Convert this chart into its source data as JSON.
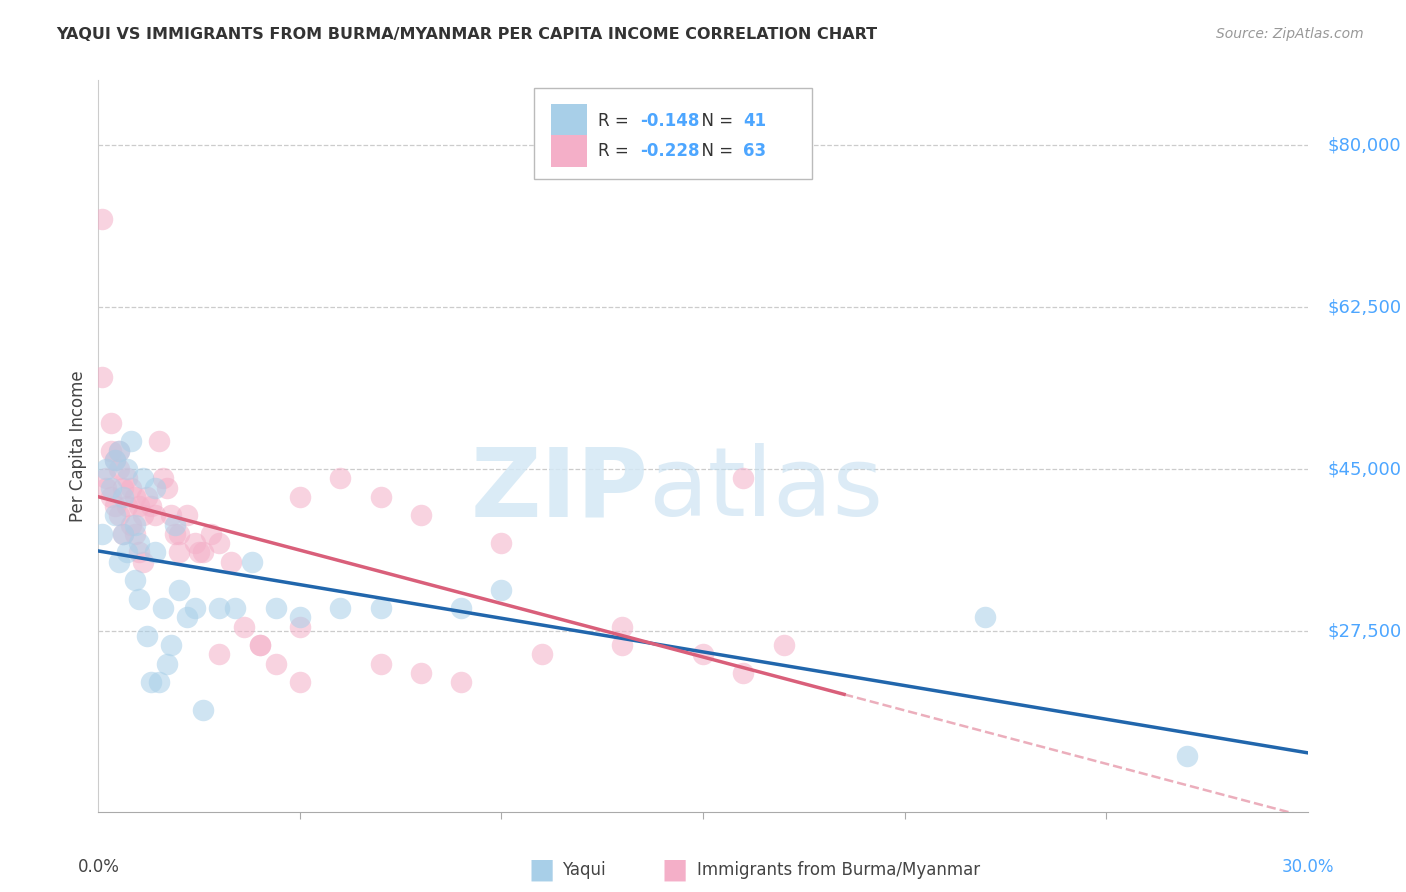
{
  "title": "YAQUI VS IMMIGRANTS FROM BURMA/MYANMAR PER CAPITA INCOME CORRELATION CHART",
  "source": "Source: ZipAtlas.com",
  "ylabel": "Per Capita Income",
  "xmin": 0.0,
  "xmax": 0.3,
  "ymin": 8000,
  "ymax": 87000,
  "blue_R": "-0.148",
  "blue_N": "41",
  "pink_R": "-0.228",
  "pink_N": "63",
  "blue_color": "#a8cfe8",
  "pink_color": "#f4afc8",
  "blue_line_color": "#2166ac",
  "pink_line_color": "#d95f7a",
  "legend_label_blue": "Yaqui",
  "legend_label_pink": "Immigrants from Burma/Myanmar",
  "watermark_zip_color": "#d8eaf5",
  "watermark_atlas_color": "#c8dff0",
  "ytick_values": [
    27500,
    45000,
    62500,
    80000
  ],
  "ytick_labels": [
    "$27,500",
    "$45,000",
    "$62,500",
    "$80,000"
  ],
  "accent_color": "#4da6ff",
  "blue_x": [
    0.001,
    0.002,
    0.003,
    0.004,
    0.004,
    0.005,
    0.005,
    0.006,
    0.006,
    0.007,
    0.007,
    0.008,
    0.009,
    0.009,
    0.01,
    0.01,
    0.011,
    0.012,
    0.013,
    0.014,
    0.014,
    0.015,
    0.016,
    0.017,
    0.018,
    0.019,
    0.02,
    0.022,
    0.024,
    0.026,
    0.03,
    0.034,
    0.038,
    0.044,
    0.05,
    0.06,
    0.07,
    0.09,
    0.1,
    0.22,
    0.27
  ],
  "blue_y": [
    38000,
    45000,
    43000,
    46000,
    40000,
    47000,
    35000,
    42000,
    38000,
    45000,
    36000,
    48000,
    39000,
    33000,
    37000,
    31000,
    44000,
    27000,
    22000,
    43000,
    36000,
    22000,
    30000,
    24000,
    26000,
    39000,
    32000,
    29000,
    30000,
    19000,
    30000,
    30000,
    35000,
    30000,
    29000,
    30000,
    30000,
    30000,
    32000,
    29000,
    14000
  ],
  "pink_x": [
    0.001,
    0.002,
    0.002,
    0.003,
    0.003,
    0.004,
    0.004,
    0.005,
    0.005,
    0.006,
    0.006,
    0.007,
    0.007,
    0.008,
    0.008,
    0.009,
    0.009,
    0.01,
    0.01,
    0.011,
    0.011,
    0.012,
    0.013,
    0.014,
    0.015,
    0.016,
    0.017,
    0.018,
    0.019,
    0.02,
    0.022,
    0.024,
    0.026,
    0.028,
    0.03,
    0.033,
    0.036,
    0.04,
    0.044,
    0.05,
    0.001,
    0.05,
    0.06,
    0.07,
    0.08,
    0.1,
    0.13,
    0.15,
    0.16,
    0.17,
    0.003,
    0.005,
    0.02,
    0.025,
    0.03,
    0.04,
    0.05,
    0.07,
    0.08,
    0.09,
    0.11,
    0.13,
    0.16
  ],
  "pink_y": [
    55000,
    44000,
    43000,
    47000,
    42000,
    46000,
    41000,
    45000,
    40000,
    43000,
    38000,
    44000,
    41000,
    43000,
    39000,
    42000,
    38000,
    41000,
    36000,
    40000,
    35000,
    42000,
    41000,
    40000,
    48000,
    44000,
    43000,
    40000,
    38000,
    36000,
    40000,
    37000,
    36000,
    38000,
    37000,
    35000,
    28000,
    26000,
    24000,
    28000,
    72000,
    42000,
    44000,
    42000,
    40000,
    37000,
    26000,
    25000,
    44000,
    26000,
    50000,
    47000,
    38000,
    36000,
    25000,
    26000,
    22000,
    24000,
    23000,
    22000,
    25000,
    28000,
    23000
  ]
}
